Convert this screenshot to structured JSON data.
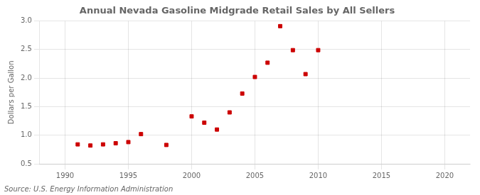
{
  "chart_data": {
    "type": "scatter",
    "title": "Annual Nevada Gasoline Midgrade Retail Sales by All Sellers",
    "y_label": "Dollars per Gallon",
    "annotation": "Source: U.S. Energy Information Administration",
    "x": [
      1991,
      1992,
      1993,
      1994,
      1995,
      1996,
      1998,
      2000,
      2001,
      2002,
      2003,
      2004,
      2005,
      2006,
      2007,
      2008,
      2009,
      2010
    ],
    "values": [
      0.84,
      0.82,
      0.84,
      0.86,
      0.88,
      1.02,
      0.83,
      1.33,
      1.22,
      1.1,
      1.4,
      1.73,
      2.02,
      2.27,
      2.91,
      2.49,
      2.07,
      2.49
    ],
    "color": "#cc0000",
    "marker": "square",
    "xlim": [
      1988,
      2022
    ],
    "xticks": [
      1990,
      1995,
      2000,
      2005,
      2010,
      2015,
      2020
    ],
    "ylim": [
      0.5,
      3.0
    ],
    "yticks": [
      0.5,
      {
        "value": 1.0,
        "label": "1.0"
      },
      1.5,
      {
        "value": 2.0,
        "label": "2.0"
      },
      2.5,
      {
        "value": 3.0,
        "label": "3.0"
      }
    ],
    "grid": true
  }
}
